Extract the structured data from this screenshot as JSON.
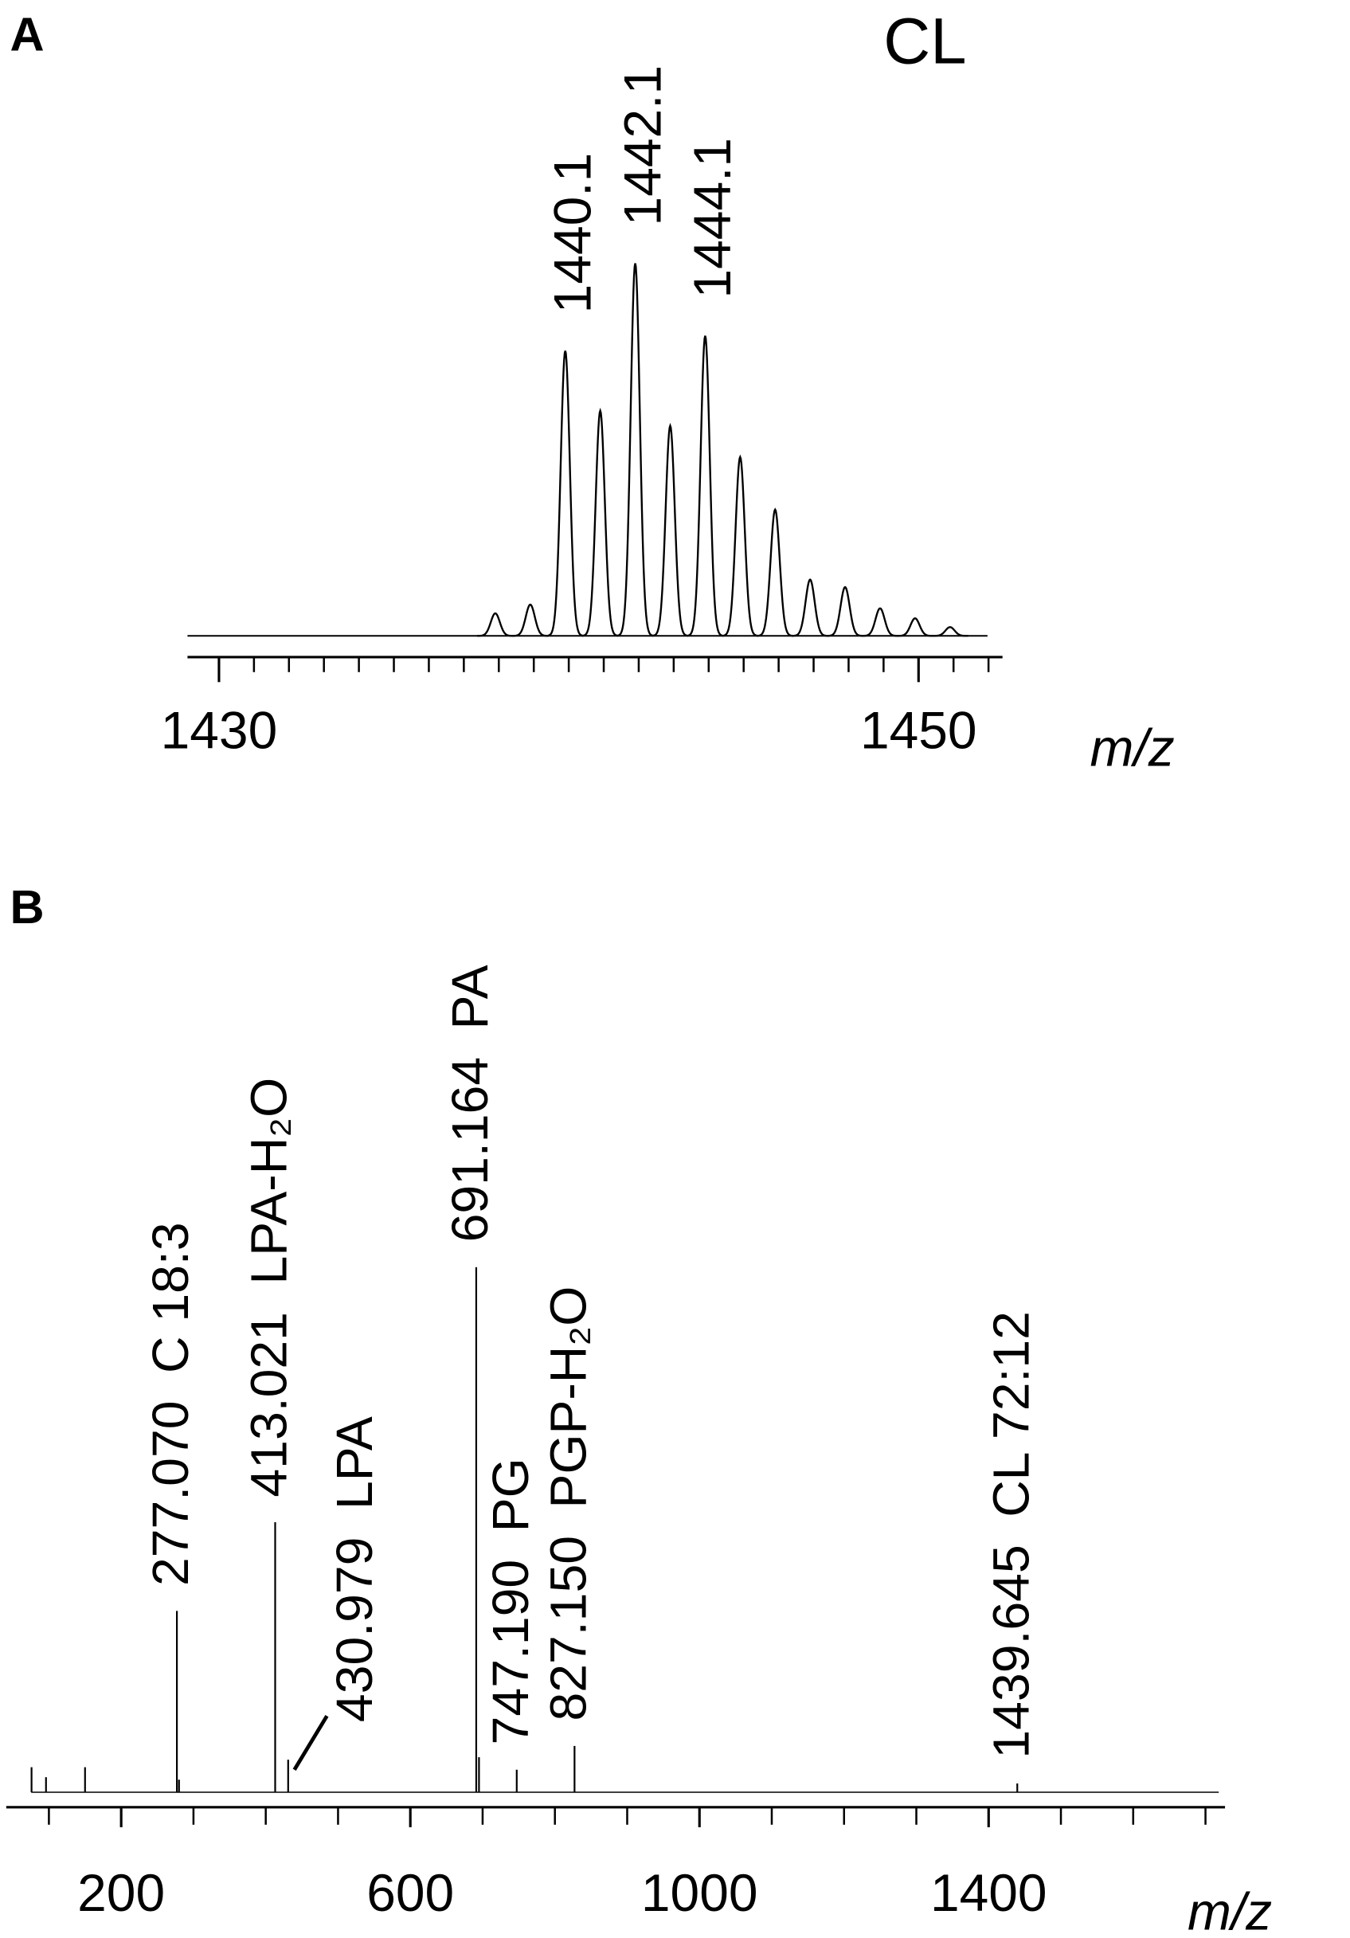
{
  "chart_data": [
    {
      "type": "profile",
      "panel": "A",
      "title": "CL",
      "x_label": "m/z",
      "x": [
        1437.9,
        1438.9,
        1439.9,
        1440.9,
        1441.9,
        1442.9,
        1443.9,
        1444.9,
        1445.9,
        1446.9,
        1447.9,
        1448.9,
        1449.9,
        1450.9
      ],
      "values": [
        18,
        25,
        228,
        180,
        298,
        168,
        240,
        143,
        101,
        45,
        39,
        22,
        14,
        7
      ],
      "color": "#000000",
      "xlim": [
        1429.1,
        1452.4
      ],
      "ylim": [
        0,
        320
      ],
      "xticks": [
        1430,
        1450
      ],
      "xminor_ticks": [
        1431,
        1432,
        1433,
        1434,
        1435,
        1436,
        1437,
        1438,
        1439,
        1440,
        1441,
        1442,
        1443,
        1444,
        1445,
        1446,
        1447,
        1448,
        1449,
        1451,
        1452
      ],
      "annotations": [
        {
          "text": "1440.1",
          "x": 1440.1
        },
        {
          "text": "1442.1",
          "x": 1442.1
        },
        {
          "text": "1444.1",
          "x": 1444.1
        }
      ]
    },
    {
      "type": "stick",
      "panel": "B",
      "x_label": "m/z",
      "x": [
        76,
        96,
        150,
        277.07,
        280,
        413.021,
        430.979,
        691.164,
        695,
        747.19,
        827.15,
        1439.645
      ],
      "values": [
        20,
        12,
        20,
        145,
        10,
        216,
        26,
        420,
        28,
        18,
        37,
        7
      ],
      "color": "#000000",
      "xlim": [
        41,
        1727
      ],
      "ylim": [
        0,
        440
      ],
      "xticks": [
        200,
        600,
        1000,
        1400
      ],
      "xminor_ticks": [
        100,
        300,
        400,
        500,
        700,
        800,
        900,
        1100,
        1200,
        1300,
        1500,
        1600,
        1700
      ],
      "annotations": [
        {
          "mz": "277.070",
          "name": "C 18:3",
          "x": 277.07
        },
        {
          "mz": "413.021",
          "name": "LPA-H₂O",
          "x": 413.021
        },
        {
          "mz": "430.979",
          "name": "LPA",
          "x": 430.979
        },
        {
          "mz": "691.164",
          "name": "PA",
          "x": 691.164
        },
        {
          "mz": "747.190",
          "name": "PG",
          "x": 747.19
        },
        {
          "mz": "827.150",
          "name": "PGP-H₂O",
          "x": 827.15
        },
        {
          "mz": "1439.645",
          "name": "CL 72:12",
          "x": 1439.645
        }
      ]
    }
  ]
}
